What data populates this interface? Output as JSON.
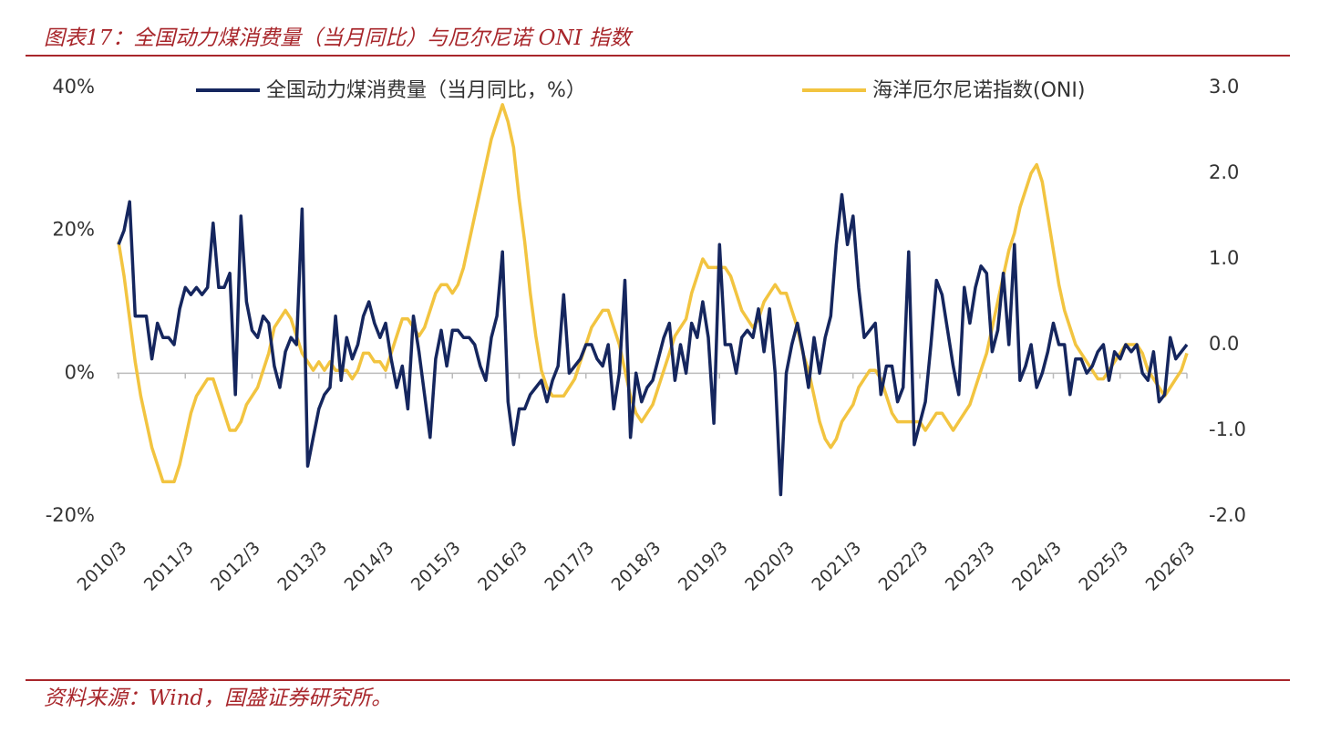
{
  "header": {
    "title": "图表17：全国动力煤消费量（当月同比）与厄尔尼诺 ONI 指数"
  },
  "chart_data": {
    "type": "line",
    "categories": [
      "2010/3",
      null,
      null,
      null,
      null,
      null,
      null,
      null,
      null,
      null,
      null,
      null,
      "2011/3",
      null,
      null,
      null,
      null,
      null,
      null,
      null,
      null,
      null,
      null,
      null,
      "2012/3",
      null,
      null,
      null,
      null,
      null,
      null,
      null,
      null,
      null,
      null,
      null,
      "2013/3",
      null,
      null,
      null,
      null,
      null,
      null,
      null,
      null,
      null,
      null,
      null,
      "2014/3",
      null,
      null,
      null,
      null,
      null,
      null,
      null,
      null,
      null,
      null,
      null,
      "2015/3",
      null,
      null,
      null,
      null,
      null,
      null,
      null,
      null,
      null,
      null,
      null,
      "2016/3",
      null,
      null,
      null,
      null,
      null,
      null,
      null,
      null,
      null,
      null,
      null,
      "2017/3",
      null,
      null,
      null,
      null,
      null,
      null,
      null,
      null,
      null,
      null,
      null,
      "2018/3",
      null,
      null,
      null,
      null,
      null,
      null,
      null,
      null,
      null,
      null,
      null,
      "2019/3",
      null,
      null,
      null,
      null,
      null,
      null,
      null,
      null,
      null,
      null,
      null,
      "2020/3",
      null,
      null,
      null,
      null,
      null,
      null,
      null,
      null,
      null,
      null,
      null,
      "2021/3",
      null,
      null,
      null,
      null,
      null,
      null,
      null,
      null,
      null,
      null,
      null,
      "2022/3",
      null,
      null,
      null,
      null,
      null,
      null,
      null,
      null,
      null,
      null,
      null,
      "2023/3",
      null,
      null,
      null,
      null,
      null,
      null,
      null,
      null,
      null,
      null,
      null,
      "2024/3",
      null,
      null,
      null,
      null,
      null,
      null,
      null,
      null,
      null,
      null,
      null,
      "2025/3",
      null,
      null,
      null,
      null,
      null,
      null,
      null,
      null,
      null,
      null,
      null,
      "2026/3"
    ],
    "series": [
      {
        "name": "全国动力煤消费量（当月同比，%）",
        "color": "#15265e",
        "values": [
          18,
          20,
          24,
          8,
          8,
          8,
          2,
          7,
          5,
          5,
          4,
          9,
          12,
          11,
          12,
          11,
          12,
          21,
          12,
          12,
          14,
          -3,
          22,
          10,
          6,
          5,
          8,
          7,
          1,
          -2,
          3,
          5,
          4,
          23,
          -13,
          -9,
          -5,
          -3,
          -2,
          8,
          -1,
          5,
          2,
          4,
          8,
          10,
          7,
          5,
          7,
          2,
          -2,
          1,
          -5,
          8,
          3,
          -3,
          -9,
          2,
          6,
          1,
          6,
          6,
          5,
          5,
          4,
          1,
          -1,
          5,
          8,
          17,
          -4,
          -10,
          -5,
          -5,
          -3,
          -2,
          -1,
          -4,
          -1,
          1,
          11,
          0,
          1,
          2,
          4,
          4,
          2,
          1,
          4,
          -5,
          0,
          13,
          -9,
          0,
          -4,
          -2,
          -1,
          2,
          5,
          7,
          -1,
          4,
          0,
          7,
          5,
          10,
          5,
          -7,
          18,
          4,
          4,
          0,
          5,
          6,
          5,
          9,
          3,
          9,
          0,
          -17,
          0,
          4,
          7,
          3,
          -2,
          5,
          0,
          5,
          8,
          18,
          25,
          18,
          22,
          12,
          5,
          6,
          7,
          -3,
          1,
          1,
          -4,
          -2,
          17,
          -10,
          -7,
          -4,
          4,
          13,
          11,
          6,
          1,
          -3,
          12,
          7,
          12,
          15,
          14,
          3,
          6,
          14,
          4,
          18,
          -1,
          1,
          4,
          -2,
          0,
          3,
          7,
          4,
          4,
          -3,
          2,
          2,
          0,
          1,
          3,
          4,
          -1,
          3,
          2,
          4,
          3,
          4,
          0,
          -1,
          3,
          -4,
          -3,
          5,
          2,
          3,
          4
        ]
      },
      {
        "name": "海洋厄尔尼诺指数(ONI)",
        "color": "#f2c440",
        "axis": "y2",
        "values": [
          1.2,
          0.8,
          0.3,
          -0.2,
          -0.6,
          -0.9,
          -1.2,
          -1.4,
          -1.6,
          -1.6,
          -1.6,
          -1.4,
          -1.1,
          -0.8,
          -0.6,
          -0.5,
          -0.4,
          -0.4,
          -0.6,
          -0.8,
          -1.0,
          -1.0,
          -0.9,
          -0.7,
          -0.6,
          -0.5,
          -0.3,
          -0.1,
          0.2,
          0.3,
          0.4,
          0.3,
          0.1,
          -0.1,
          -0.2,
          -0.3,
          -0.2,
          -0.3,
          -0.2,
          -0.3,
          -0.3,
          -0.3,
          -0.4,
          -0.3,
          -0.1,
          -0.1,
          -0.2,
          -0.2,
          -0.3,
          -0.1,
          0.1,
          0.3,
          0.3,
          0.2,
          0.1,
          0.2,
          0.4,
          0.6,
          0.7,
          0.7,
          0.6,
          0.7,
          0.9,
          1.2,
          1.5,
          1.8,
          2.1,
          2.4,
          2.6,
          2.8,
          2.6,
          2.3,
          1.7,
          1.2,
          0.6,
          0.1,
          -0.3,
          -0.5,
          -0.6,
          -0.6,
          -0.6,
          -0.5,
          -0.4,
          -0.2,
          0.0,
          0.2,
          0.3,
          0.4,
          0.4,
          0.2,
          0.0,
          -0.3,
          -0.6,
          -0.8,
          -0.9,
          -0.8,
          -0.7,
          -0.5,
          -0.3,
          -0.1,
          0.1,
          0.2,
          0.3,
          0.6,
          0.8,
          1.0,
          0.9,
          0.9,
          0.9,
          0.9,
          0.8,
          0.6,
          0.4,
          0.3,
          0.2,
          0.3,
          0.5,
          0.6,
          0.7,
          0.6,
          0.6,
          0.4,
          0.2,
          -0.1,
          -0.3,
          -0.6,
          -0.9,
          -1.1,
          -1.2,
          -1.1,
          -0.9,
          -0.8,
          -0.7,
          -0.5,
          -0.4,
          -0.3,
          -0.3,
          -0.4,
          -0.6,
          -0.8,
          -0.9,
          -0.9,
          -0.9,
          -0.9,
          -0.9,
          -1.0,
          -0.9,
          -0.8,
          -0.8,
          -0.9,
          -1.0,
          -0.9,
          -0.8,
          -0.7,
          -0.5,
          -0.3,
          -0.1,
          0.2,
          0.5,
          0.8,
          1.1,
          1.3,
          1.6,
          1.8,
          2.0,
          2.1,
          1.9,
          1.5,
          1.1,
          0.7,
          0.4,
          0.2,
          0.0,
          -0.1,
          -0.2,
          -0.3,
          -0.4,
          -0.4,
          -0.3,
          -0.2,
          -0.1,
          0.0,
          0.0,
          0.0,
          -0.1,
          -0.3,
          -0.4,
          -0.5,
          -0.6,
          -0.5,
          -0.4,
          -0.3,
          -0.1
        ]
      }
    ],
    "ylim": [
      -20,
      40
    ],
    "yticks": [
      {
        "value": -20,
        "label": "-20%"
      },
      {
        "value": 0,
        "label": "0%"
      },
      {
        "value": 20,
        "label": "20%"
      },
      {
        "value": 40,
        "label": "40%"
      }
    ],
    "y2lim": [
      -2,
      3
    ],
    "y2ticks": [
      {
        "value": -2,
        "label": "-2.0"
      },
      {
        "value": -1,
        "label": "-1.0"
      },
      {
        "value": 0,
        "label": "0.0"
      },
      {
        "value": 1,
        "label": "1.0"
      },
      {
        "value": 2,
        "label": "2.0"
      },
      {
        "value": 3,
        "label": "3.0"
      }
    ],
    "legend": "top"
  },
  "footer": {
    "source": "资料来源：Wind，国盛证券研究所。"
  }
}
